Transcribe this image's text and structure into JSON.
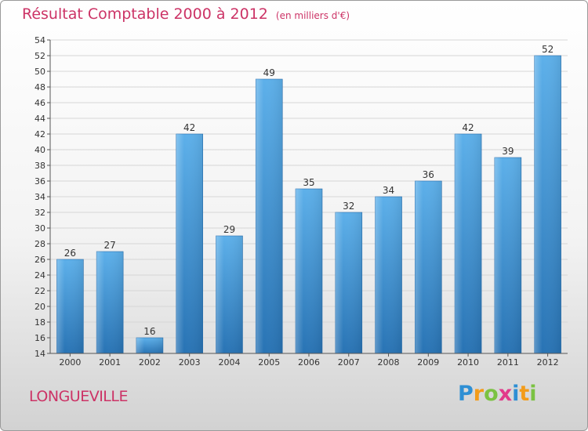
{
  "header": {
    "title": "Résultat Comptable 2000 à 2012",
    "subtitle": "(en milliers d'€)"
  },
  "footer": {
    "location": "LONGUEVILLE"
  },
  "logo": {
    "letters": [
      "P",
      "r",
      "o",
      "x",
      "i",
      "t",
      "i"
    ],
    "colors": [
      "#2e8fd4",
      "#f39c1a",
      "#7bc242",
      "#e23a8a",
      "#2e8fd4",
      "#f39c1a",
      "#7bc242"
    ]
  },
  "colors": {
    "bar_light": "#5db0ea",
    "bar_dark": "#2873b4",
    "accent": "#cc3366"
  },
  "chart_data": {
    "type": "bar",
    "title": "Résultat Comptable 2000 à 2012",
    "subtitle": "(en milliers d'€)",
    "xlabel": "",
    "ylabel": "",
    "categories": [
      "2000",
      "2001",
      "2002",
      "2003",
      "2004",
      "2005",
      "2006",
      "2007",
      "2008",
      "2009",
      "2010",
      "2011",
      "2012"
    ],
    "values": [
      26,
      27,
      16,
      42,
      29,
      49,
      35,
      32,
      34,
      36,
      42,
      39,
      52
    ],
    "ylim": [
      14,
      54
    ],
    "ytick_step": 2,
    "grid": true,
    "data_labels": true
  }
}
